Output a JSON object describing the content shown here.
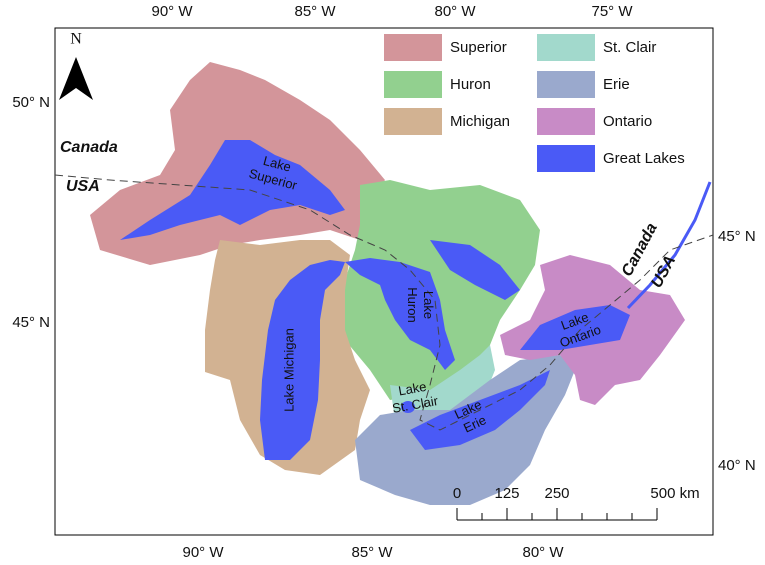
{
  "map": {
    "north": "N",
    "axes": {
      "top": [
        "90° W",
        "85° W",
        "80° W",
        "75° W"
      ],
      "bottom": [
        "90° W",
        "85° W",
        "80° W"
      ],
      "left": [
        "50° N",
        "45° N"
      ],
      "right": [
        "45° N",
        "40° N"
      ]
    },
    "legend": [
      {
        "name": "Superior",
        "color": "#d3959a"
      },
      {
        "name": "Huron",
        "color": "#92d08f"
      },
      {
        "name": "Michigan",
        "color": "#d2b292"
      },
      {
        "name": "St. Clair",
        "color": "#a2d9cc"
      },
      {
        "name": "Erie",
        "color": "#9aa9cd"
      },
      {
        "name": "Ontario",
        "color": "#c88bc6"
      },
      {
        "name": "Great Lakes",
        "color": "#4a5af6"
      }
    ],
    "country_labels": [
      "Canada",
      "USA",
      "Canada",
      "USA"
    ],
    "lake_labels": [
      {
        "lines": [
          "Lake",
          "Superior"
        ]
      },
      {
        "lines": [
          "Lake",
          "Huron"
        ]
      },
      {
        "lines": [
          "Lake Michigan"
        ]
      },
      {
        "lines": [
          "Lake",
          "St. Clair"
        ]
      },
      {
        "lines": [
          "Lake",
          "Erie"
        ]
      },
      {
        "lines": [
          "Lake",
          "Ontario"
        ]
      }
    ],
    "scale": [
      "0",
      "125",
      "250",
      "500 km"
    ]
  }
}
